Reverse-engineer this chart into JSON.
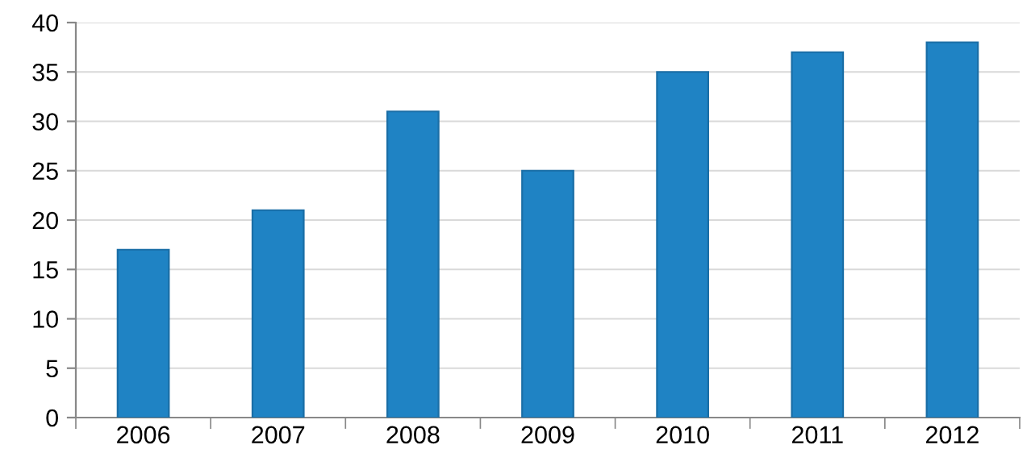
{
  "chart_data": {
    "type": "bar",
    "categories": [
      "2006",
      "2007",
      "2008",
      "2009",
      "2010",
      "2011",
      "2012"
    ],
    "values": [
      17,
      21,
      31,
      25,
      35,
      37,
      38
    ],
    "color": "#1f83c4",
    "ylim": [
      0,
      40
    ],
    "yticks": [
      0,
      5,
      10,
      15,
      20,
      25,
      30,
      35,
      40
    ],
    "grid": "y"
  }
}
